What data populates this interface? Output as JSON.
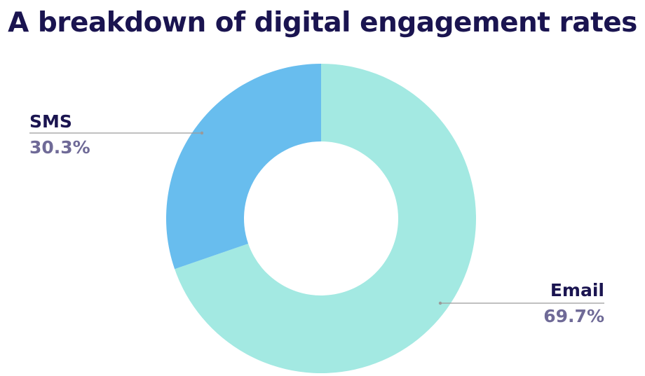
{
  "colors": {
    "title": "#1a1450",
    "label_name": "#1a1450",
    "label_value": "#6f6a97",
    "leader": "#9a9a9a"
  },
  "chart_data": {
    "type": "pie",
    "donut": true,
    "title": "A breakdown of digital engagement rates",
    "slices": [
      {
        "label": "Email",
        "value": 69.7,
        "display": "69.7%",
        "color": "#a3e9e2"
      },
      {
        "label": "SMS",
        "value": 30.3,
        "display": "30.3%",
        "color": "#68bdee"
      }
    ],
    "start": "12 o'clock",
    "direction": "clockwise",
    "legend": "none"
  }
}
